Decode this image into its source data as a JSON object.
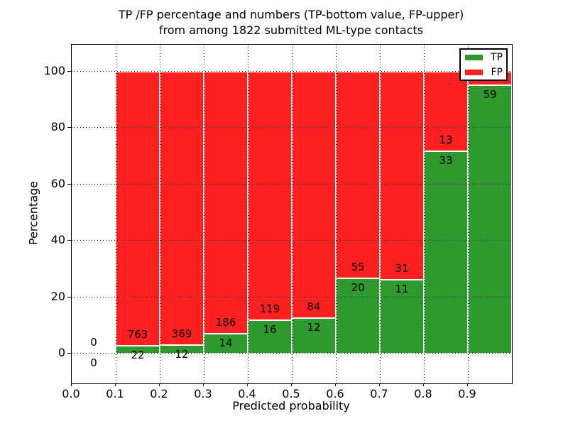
{
  "chart_data": {
    "type": "bar",
    "stacked": true,
    "title_lines": [
      "TP /FP percentage and numbers (TP-bottom value, FP-upper)",
      "from among 1822 submitted ML-type contacts"
    ],
    "total_submitted": 1822,
    "xlabel": "Predicted probability",
    "ylabel": "Percentage",
    "xlim": [
      0.0,
      1.0
    ],
    "ylim": [
      -10.6,
      109.6
    ],
    "grid": {
      "style": "dotted",
      "color": "#000000"
    },
    "colors": {
      "tp": "#2e992e",
      "fp": "#ff2020",
      "bar_edge": "#ffffff",
      "axes": "#000000"
    },
    "legend": {
      "position": "upper right",
      "entries": [
        {
          "label": "TP",
          "series": "tp"
        },
        {
          "label": "FP",
          "series": "fp"
        }
      ]
    },
    "xticks": [
      {
        "v": 0.0,
        "label": "0.0"
      },
      {
        "v": 0.1,
        "label": "0.1"
      },
      {
        "v": 0.2,
        "label": "0.2"
      },
      {
        "v": 0.3,
        "label": "0.3"
      },
      {
        "v": 0.4,
        "label": "0.4"
      },
      {
        "v": 0.5,
        "label": "0.5"
      },
      {
        "v": 0.6,
        "label": "0.6"
      },
      {
        "v": 0.7,
        "label": "0.7"
      },
      {
        "v": 0.8,
        "label": "0.8"
      },
      {
        "v": 0.9,
        "label": "0.9"
      }
    ],
    "yticks": [
      {
        "v": 0,
        "label": "0"
      },
      {
        "v": 20,
        "label": "20"
      },
      {
        "v": 40,
        "label": "40"
      },
      {
        "v": 60,
        "label": "60"
      },
      {
        "v": 80,
        "label": "80"
      },
      {
        "v": 100,
        "label": "100"
      }
    ],
    "bins": [
      {
        "x_start": 0.0,
        "x_end": 0.1,
        "has_bar": false,
        "tp_pct": 0.0,
        "tp_label": "0",
        "fp_label": "0"
      },
      {
        "x_start": 0.1,
        "x_end": 0.2,
        "has_bar": true,
        "tp_count": 22,
        "fp_count": 763,
        "tp_pct": 2.8,
        "tp_label": "22",
        "fp_label": "763"
      },
      {
        "x_start": 0.2,
        "x_end": 0.3,
        "has_bar": true,
        "tp_count": 12,
        "fp_count": 369,
        "tp_pct": 3.1,
        "tp_label": "12",
        "fp_label": "369"
      },
      {
        "x_start": 0.3,
        "x_end": 0.4,
        "has_bar": true,
        "tp_count": 14,
        "fp_count": 186,
        "tp_pct": 7.0,
        "tp_label": "14",
        "fp_label": "186"
      },
      {
        "x_start": 0.4,
        "x_end": 0.5,
        "has_bar": true,
        "tp_count": 16,
        "fp_count": 119,
        "tp_pct": 11.9,
        "tp_label": "16",
        "fp_label": "119"
      },
      {
        "x_start": 0.5,
        "x_end": 0.6,
        "has_bar": true,
        "tp_count": 12,
        "fp_count": 84,
        "tp_pct": 12.5,
        "tp_label": "12",
        "fp_label": "84"
      },
      {
        "x_start": 0.6,
        "x_end": 0.7,
        "has_bar": true,
        "tp_count": 20,
        "fp_count": 55,
        "tp_pct": 26.7,
        "tp_label": "20",
        "fp_label": "55"
      },
      {
        "x_start": 0.7,
        "x_end": 0.8,
        "has_bar": true,
        "tp_count": 11,
        "fp_count": 31,
        "tp_pct": 26.2,
        "tp_label": "11",
        "fp_label": "31"
      },
      {
        "x_start": 0.8,
        "x_end": 0.9,
        "has_bar": true,
        "tp_count": 33,
        "fp_count": 13,
        "tp_pct": 71.7,
        "tp_label": "33",
        "fp_label": "13"
      },
      {
        "x_start": 0.9,
        "x_end": 1.0,
        "has_bar": true,
        "tp_count": 59,
        "tp_pct": 95.2,
        "tp_label": "59",
        "fp_label": ""
      }
    ]
  }
}
